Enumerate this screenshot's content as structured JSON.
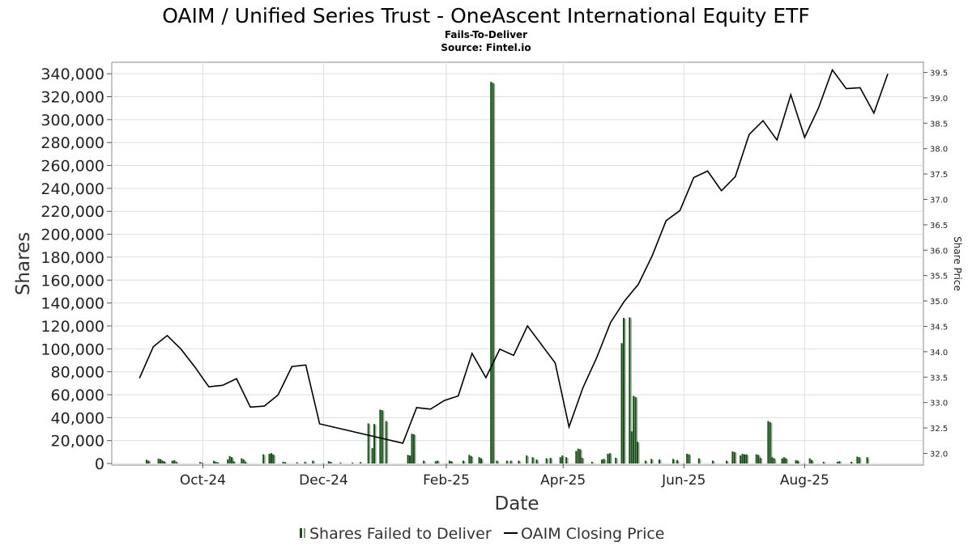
{
  "chart_data": {
    "type": "bar",
    "title": "OAIM / Unified Series Trust - OneAscent International Equity ETF",
    "subtitle": "Fails-To-Deliver",
    "source": "Source: Fintel.io",
    "xlabel": "Date",
    "ylabel": "Shares",
    "y2label": "Share Price",
    "ylim": [
      0,
      350000
    ],
    "y2lim": [
      31.8,
      39.7
    ],
    "yticks": [
      "0",
      "20,000",
      "40,000",
      "60,000",
      "80,000",
      "100,000",
      "120,000",
      "140,000",
      "160,000",
      "180,000",
      "200,000",
      "220,000",
      "240,000",
      "260,000",
      "280,000",
      "300,000",
      "320,000",
      "340,000"
    ],
    "y2ticks": [
      "32.0",
      "32.5",
      "33.0",
      "33.5",
      "34.0",
      "34.5",
      "35.0",
      "35.5",
      "36.0",
      "36.5",
      "37.0",
      "37.5",
      "38.0",
      "38.5",
      "39.0",
      "39.5"
    ],
    "xticks": [
      {
        "label": "Oct-24",
        "date": "2024-10-01"
      },
      {
        "label": "Dec-24",
        "date": "2024-12-01"
      },
      {
        "label": "Feb-25",
        "date": "2025-02-01"
      },
      {
        "label": "Apr-25",
        "date": "2025-04-01"
      },
      {
        "label": "Jun-25",
        "date": "2025-06-01"
      },
      {
        "label": "Aug-25",
        "date": "2025-08-01"
      }
    ],
    "xlim": [
      "2024-08-16",
      "2025-09-30"
    ],
    "grid": true,
    "legend_position": "bottom",
    "series": [
      {
        "name": "Shares Failed to Deliver",
        "type": "bar",
        "color": "#1a4d1a",
        "points": [
          [
            "2024-09-03",
            3200
          ],
          [
            "2024-09-04",
            2500
          ],
          [
            "2024-09-09",
            4200
          ],
          [
            "2024-09-10",
            3800
          ],
          [
            "2024-09-11",
            2600
          ],
          [
            "2024-09-12",
            1800
          ],
          [
            "2024-09-16",
            2500
          ],
          [
            "2024-09-17",
            2800
          ],
          [
            "2024-09-18",
            1500
          ],
          [
            "2024-09-30",
            1200
          ],
          [
            "2024-10-01",
            800
          ],
          [
            "2024-10-07",
            2400
          ],
          [
            "2024-10-08",
            1500
          ],
          [
            "2024-10-09",
            1000
          ],
          [
            "2024-10-14",
            3500
          ],
          [
            "2024-10-15",
            6500
          ],
          [
            "2024-10-16",
            5500
          ],
          [
            "2024-10-17",
            2000
          ],
          [
            "2024-10-21",
            4500
          ],
          [
            "2024-10-22",
            3500
          ],
          [
            "2024-10-23",
            1500
          ],
          [
            "2024-11-01",
            8000
          ],
          [
            "2024-11-04",
            8500
          ],
          [
            "2024-11-05",
            9000
          ],
          [
            "2024-11-06",
            7800
          ],
          [
            "2024-11-11",
            1500
          ],
          [
            "2024-11-12",
            1200
          ],
          [
            "2024-11-18",
            1000
          ],
          [
            "2024-11-22",
            1500
          ],
          [
            "2024-11-26",
            2500
          ],
          [
            "2024-12-04",
            2000
          ],
          [
            "2024-12-05",
            1500
          ],
          [
            "2024-12-10",
            800
          ],
          [
            "2024-12-16",
            800
          ],
          [
            "2024-12-20",
            1200
          ],
          [
            "2024-12-24",
            35000
          ],
          [
            "2024-12-26",
            13500
          ],
          [
            "2024-12-27",
            34500
          ],
          [
            "2024-12-30",
            47000
          ],
          [
            "2024-12-31",
            46500
          ],
          [
            "2025-01-02",
            37000
          ],
          [
            "2025-01-13",
            7500
          ],
          [
            "2025-01-14",
            7000
          ],
          [
            "2025-01-15",
            26000
          ],
          [
            "2025-01-16",
            25500
          ],
          [
            "2025-01-21",
            2500
          ],
          [
            "2025-01-27",
            2000
          ],
          [
            "2025-01-28",
            2500
          ],
          [
            "2025-02-03",
            2500
          ],
          [
            "2025-02-04",
            2000
          ],
          [
            "2025-02-10",
            2500
          ],
          [
            "2025-02-13",
            7500
          ],
          [
            "2025-02-14",
            6500
          ],
          [
            "2025-02-18",
            5500
          ],
          [
            "2025-02-19",
            4500
          ],
          [
            "2025-02-24",
            333000
          ],
          [
            "2025-02-25",
            332000
          ],
          [
            "2025-02-27",
            2500
          ],
          [
            "2025-03-04",
            2500
          ],
          [
            "2025-03-06",
            2500
          ],
          [
            "2025-03-10",
            2500
          ],
          [
            "2025-03-14",
            7000
          ],
          [
            "2025-03-17",
            5500
          ],
          [
            "2025-03-19",
            3500
          ],
          [
            "2025-03-24",
            4500
          ],
          [
            "2025-03-26",
            5000
          ],
          [
            "2025-03-31",
            5500
          ],
          [
            "2025-04-01",
            7000
          ],
          [
            "2025-04-03",
            5500
          ],
          [
            "2025-04-08",
            11000
          ],
          [
            "2025-04-09",
            13000
          ],
          [
            "2025-04-10",
            12500
          ],
          [
            "2025-04-11",
            5000
          ],
          [
            "2025-04-16",
            1500
          ],
          [
            "2025-04-21",
            3500
          ],
          [
            "2025-04-22",
            4000
          ],
          [
            "2025-04-24",
            8500
          ],
          [
            "2025-04-25",
            9000
          ],
          [
            "2025-04-28",
            5000
          ],
          [
            "2025-05-01",
            105000
          ],
          [
            "2025-05-02",
            127000
          ],
          [
            "2025-05-05",
            127500
          ],
          [
            "2025-05-06",
            28000
          ],
          [
            "2025-05-07",
            59000
          ],
          [
            "2025-05-08",
            58000
          ],
          [
            "2025-05-09",
            19000
          ],
          [
            "2025-05-13",
            2500
          ],
          [
            "2025-05-16",
            4000
          ],
          [
            "2025-05-20",
            3500
          ],
          [
            "2025-05-27",
            4000
          ],
          [
            "2025-05-29",
            3000
          ],
          [
            "2025-06-03",
            8500
          ],
          [
            "2025-06-04",
            8000
          ],
          [
            "2025-06-09",
            4500
          ],
          [
            "2025-06-16",
            2500
          ],
          [
            "2025-06-23",
            2500
          ],
          [
            "2025-06-26",
            10500
          ],
          [
            "2025-06-27",
            10000
          ],
          [
            "2025-06-30",
            7000
          ],
          [
            "2025-07-01",
            8500
          ],
          [
            "2025-07-02",
            8000
          ],
          [
            "2025-07-03",
            8000
          ],
          [
            "2025-07-08",
            8000
          ],
          [
            "2025-07-09",
            7500
          ],
          [
            "2025-07-10",
            5000
          ],
          [
            "2025-07-14",
            37000
          ],
          [
            "2025-07-15",
            36000
          ],
          [
            "2025-07-16",
            5500
          ],
          [
            "2025-07-17",
            4500
          ],
          [
            "2025-07-21",
            4500
          ],
          [
            "2025-07-22",
            5500
          ],
          [
            "2025-07-23",
            4500
          ],
          [
            "2025-07-28",
            3000
          ],
          [
            "2025-07-29",
            2500
          ],
          [
            "2025-08-04",
            4500
          ],
          [
            "2025-08-05",
            3000
          ],
          [
            "2025-08-11",
            1500
          ],
          [
            "2025-08-18",
            1500
          ],
          [
            "2025-08-19",
            2000
          ],
          [
            "2025-08-25",
            1500
          ],
          [
            "2025-08-28",
            6000
          ],
          [
            "2025-08-29",
            5500
          ],
          [
            "2025-09-02",
            5500
          ]
        ]
      },
      {
        "name": "OAIM Closing Price",
        "type": "line",
        "color": "#000000",
        "points": [
          [
            "2024-08-30",
            33.48
          ],
          [
            "2024-09-06",
            34.1
          ],
          [
            "2024-09-13",
            34.32
          ],
          [
            "2024-09-20",
            34.05
          ],
          [
            "2024-09-27",
            33.7
          ],
          [
            "2024-10-04",
            33.31
          ],
          [
            "2024-10-11",
            33.34
          ],
          [
            "2024-10-18",
            33.47
          ],
          [
            "2024-10-25",
            32.91
          ],
          [
            "2024-11-01",
            32.93
          ],
          [
            "2024-11-08",
            33.15
          ],
          [
            "2024-11-15",
            33.71
          ],
          [
            "2024-11-22",
            33.74
          ],
          [
            "2024-11-29",
            32.58
          ],
          [
            "2025-01-10",
            32.2
          ],
          [
            "2025-01-17",
            32.9
          ],
          [
            "2025-01-24",
            32.87
          ],
          [
            "2025-01-31",
            33.04
          ],
          [
            "2025-02-07",
            33.13
          ],
          [
            "2025-02-14",
            33.97
          ],
          [
            "2025-02-21",
            33.49
          ],
          [
            "2025-02-28",
            34.05
          ],
          [
            "2025-03-07",
            33.93
          ],
          [
            "2025-03-14",
            34.51
          ],
          [
            "2025-03-28",
            33.78
          ],
          [
            "2025-04-04",
            32.52
          ],
          [
            "2025-04-11",
            33.29
          ],
          [
            "2025-04-18",
            33.89
          ],
          [
            "2025-04-25",
            34.58
          ],
          [
            "2025-05-02",
            35.0
          ],
          [
            "2025-05-09",
            35.33
          ],
          [
            "2025-05-16",
            35.89
          ],
          [
            "2025-05-23",
            36.58
          ],
          [
            "2025-05-30",
            36.78
          ],
          [
            "2025-06-06",
            37.43
          ],
          [
            "2025-06-13",
            37.56
          ],
          [
            "2025-06-20",
            37.17
          ],
          [
            "2025-06-27",
            37.45
          ],
          [
            "2025-07-04",
            38.28
          ],
          [
            "2025-07-11",
            38.55
          ],
          [
            "2025-07-18",
            38.17
          ],
          [
            "2025-07-25",
            39.06
          ],
          [
            "2025-08-01",
            38.22
          ],
          [
            "2025-08-08",
            38.8
          ],
          [
            "2025-08-15",
            39.55
          ],
          [
            "2025-08-22",
            39.18
          ],
          [
            "2025-08-29",
            39.2
          ],
          [
            "2025-09-05",
            38.7
          ],
          [
            "2025-09-12",
            39.47
          ]
        ]
      }
    ]
  }
}
